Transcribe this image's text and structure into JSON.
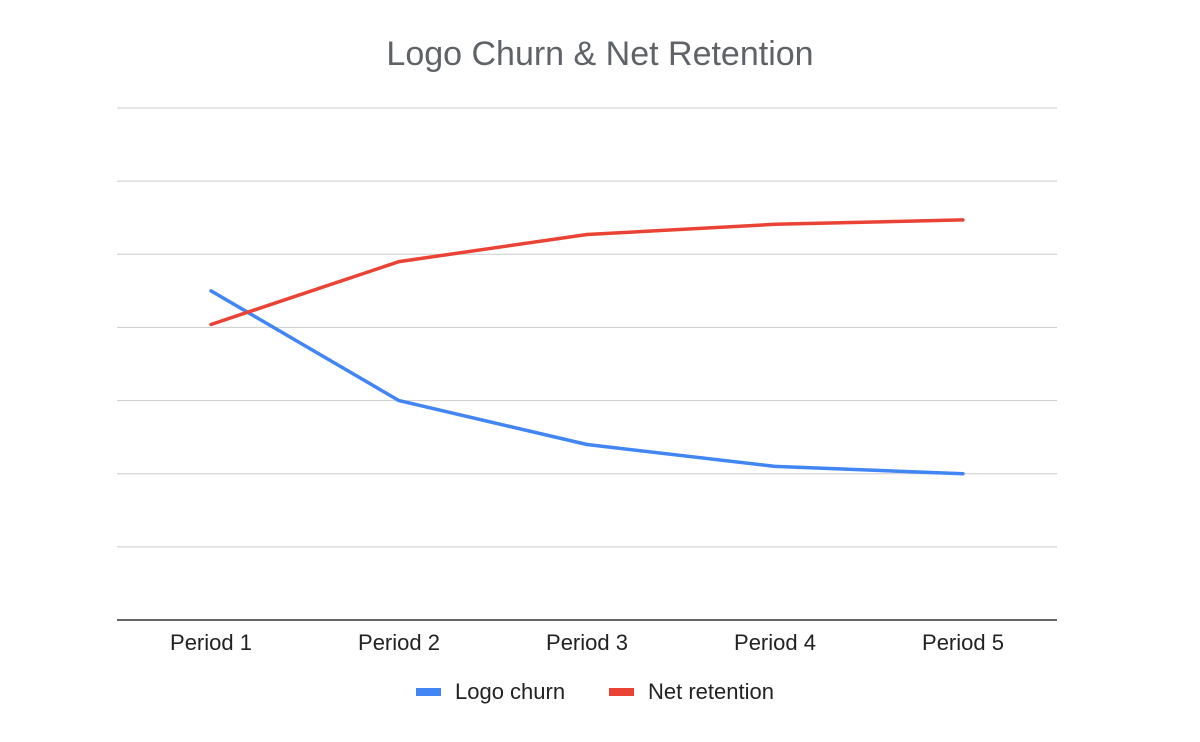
{
  "chart_data": {
    "type": "line",
    "title": "Logo Churn & Net Retention",
    "xlabel": "",
    "ylabel": "",
    "categories": [
      "Period 1",
      "Period 2",
      "Period 3",
      "Period 4",
      "Period 5"
    ],
    "series": [
      {
        "name": "Logo churn",
        "color": "#4285f4",
        "values": [
          4.5,
          3.0,
          2.4,
          2.1,
          2.0
        ]
      },
      {
        "name": "Net retention",
        "color": "#ea4335",
        "values": [
          4.04,
          4.9,
          5.27,
          5.41,
          5.47
        ]
      }
    ],
    "ylim": [
      0,
      7
    ],
    "grid": true,
    "y_tick_labels_shown": false,
    "legend": "bottom"
  }
}
